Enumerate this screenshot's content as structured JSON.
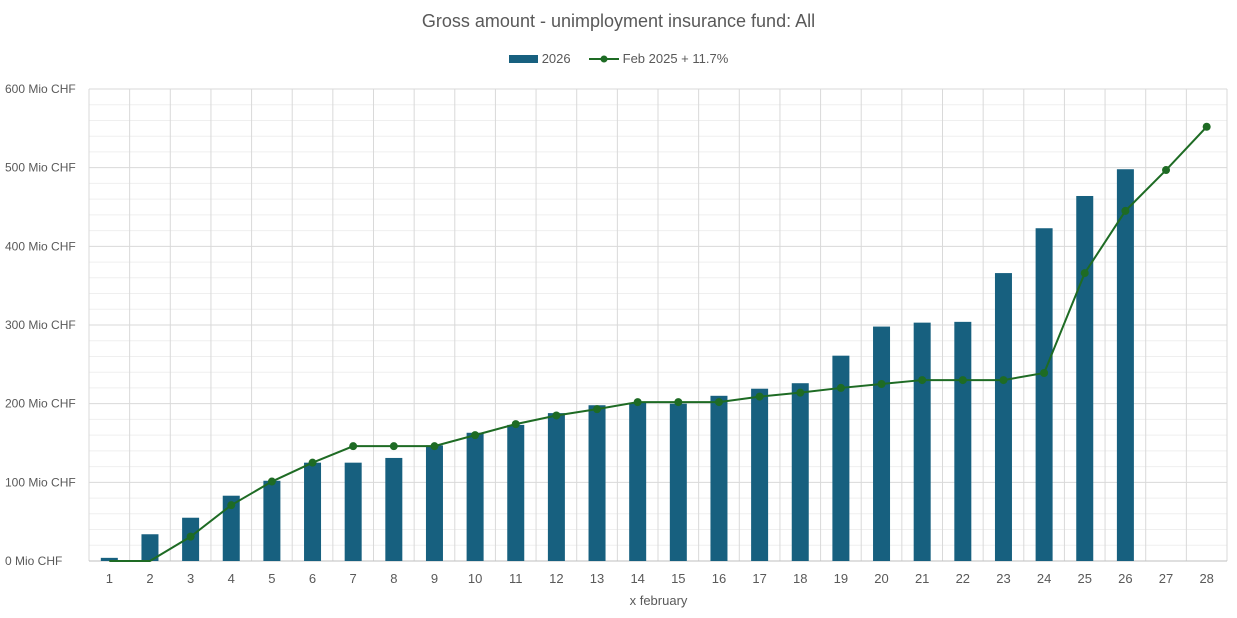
{
  "chart_data": {
    "type": "bar+line",
    "title": "Gross amount - unimployment insurance fund: All",
    "xlabel": "x february",
    "ylabel": "",
    "ylim": [
      0,
      600
    ],
    "y_ticks": [
      "0 Mio CHF",
      "100 Mio CHF",
      "200 Mio CHF",
      "300 Mio CHF",
      "400 Mio CHF",
      "500 Mio CHF",
      "600 Mio CHF"
    ],
    "grid": true,
    "legend_position": "top",
    "categories": [
      1,
      2,
      3,
      4,
      5,
      6,
      7,
      8,
      9,
      10,
      11,
      12,
      13,
      14,
      15,
      16,
      17,
      18,
      19,
      20,
      21,
      22,
      23,
      24,
      25,
      26,
      27,
      28
    ],
    "series": [
      {
        "name": "2026",
        "type": "bar",
        "color": "#17607f",
        "values": [
          4,
          34,
          55,
          83,
          102,
          125,
          125,
          131,
          147,
          163,
          173,
          188,
          198,
          201,
          200,
          210,
          219,
          226,
          261,
          298,
          303,
          304,
          366,
          423,
          464,
          498,
          null,
          null
        ]
      },
      {
        "name": "Feb 2025 + 11.7%",
        "type": "line",
        "color": "#1e6b24",
        "values": [
          0,
          0,
          31,
          71,
          101,
          125,
          146,
          146,
          146,
          160,
          174,
          185,
          193,
          202,
          202,
          202,
          209,
          214,
          220,
          225,
          230,
          230,
          230,
          239,
          366,
          445,
          497,
          552
        ]
      }
    ]
  },
  "legend": {
    "bar_label": "2026",
    "line_label": "Feb 2025 + 11.7%"
  }
}
